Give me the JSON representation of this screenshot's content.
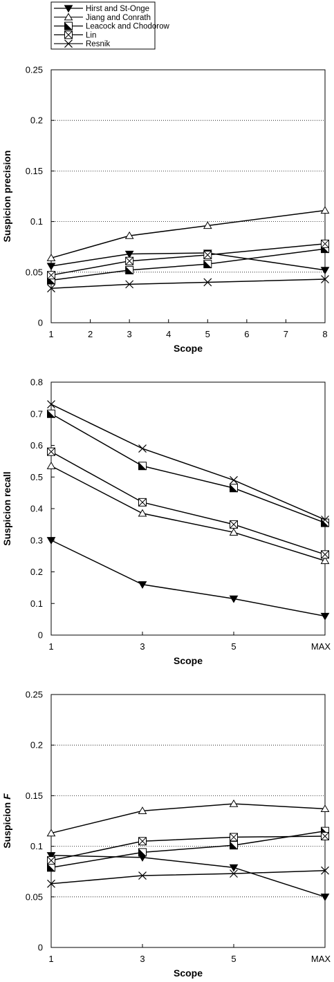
{
  "legend": {
    "entries": [
      "Hirst and St-Onge",
      "Jiang and Conrath",
      "Leacock and Chodorow",
      "Lin",
      "Resnik"
    ]
  },
  "chart_data": [
    {
      "type": "line",
      "xlabel": "Scope",
      "ylabel": "Suspicion precision",
      "x_ticks": [
        "1",
        "2",
        "3",
        "4",
        "5",
        "6",
        "7",
        "8"
      ],
      "x": [
        1,
        3,
        5,
        8
      ],
      "xlim": [
        1,
        8
      ],
      "ylim": [
        0,
        0.25
      ],
      "y_ticks": [
        "0",
        "0.05",
        "0.1",
        "0.15",
        "0.2",
        "0.25"
      ],
      "y_tick_values": [
        0,
        0.05,
        0.1,
        0.15,
        0.2,
        0.25
      ],
      "grid": "horizontal dotted",
      "series": [
        {
          "name": "Hirst and St-Onge",
          "marker": "filled-down-triangle",
          "values": [
            0.056,
            0.068,
            0.069,
            0.052
          ]
        },
        {
          "name": "Jiang and Conrath",
          "marker": "open-up-triangle",
          "values": [
            0.064,
            0.086,
            0.096,
            0.111
          ]
        },
        {
          "name": "Leacock and Chodorow",
          "marker": "half-filled-square",
          "values": [
            0.042,
            0.052,
            0.058,
            0.073
          ]
        },
        {
          "name": "Lin",
          "marker": "crossed-square",
          "values": [
            0.047,
            0.061,
            0.067,
            0.078
          ]
        },
        {
          "name": "Resnik",
          "marker": "x",
          "values": [
            0.034,
            0.038,
            0.04,
            0.043
          ]
        }
      ]
    },
    {
      "type": "line",
      "xlabel": "Scope",
      "ylabel": "Suspicion recall",
      "x_ticks": [
        "1",
        "3",
        "5",
        "MAX"
      ],
      "x": [
        1,
        3,
        5,
        7
      ],
      "xlim": [
        1,
        7
      ],
      "ylim": [
        0,
        0.8
      ],
      "y_ticks": [
        "0",
        "0.1",
        "0.2",
        "0.3",
        "0.4",
        "0.5",
        "0.6",
        "0.7",
        "0.8"
      ],
      "y_tick_values": [
        0,
        0.1,
        0.2,
        0.3,
        0.4,
        0.5,
        0.6,
        0.7,
        0.8
      ],
      "grid": "none",
      "series": [
        {
          "name": "Hirst and St-Onge",
          "marker": "filled-down-triangle",
          "values": [
            0.3,
            0.16,
            0.115,
            0.06
          ]
        },
        {
          "name": "Jiang and Conrath",
          "marker": "open-up-triangle",
          "values": [
            0.535,
            0.385,
            0.325,
            0.235
          ]
        },
        {
          "name": "Leacock and Chodorow",
          "marker": "half-filled-square",
          "values": [
            0.7,
            0.535,
            0.465,
            0.355
          ]
        },
        {
          "name": "Lin",
          "marker": "crossed-square",
          "values": [
            0.58,
            0.42,
            0.35,
            0.255
          ]
        },
        {
          "name": "Resnik",
          "marker": "x",
          "values": [
            0.73,
            0.59,
            0.49,
            0.365
          ]
        }
      ]
    },
    {
      "type": "line",
      "xlabel": "Scope",
      "ylabel_prefix": "Suspicion ",
      "ylabel_italic": "F",
      "x_ticks": [
        "1",
        "3",
        "5",
        "MAX"
      ],
      "x": [
        1,
        3,
        5,
        7
      ],
      "xlim": [
        1,
        7
      ],
      "ylim": [
        0,
        0.25
      ],
      "y_ticks": [
        "0",
        "0.05",
        "0.1",
        "0.15",
        "0.2",
        "0.25"
      ],
      "y_tick_values": [
        0,
        0.05,
        0.1,
        0.15,
        0.2,
        0.25
      ],
      "grid": "horizontal dotted",
      "series": [
        {
          "name": "Hirst and St-Onge",
          "marker": "filled-down-triangle",
          "values": [
            0.091,
            0.089,
            0.079,
            0.05
          ]
        },
        {
          "name": "Jiang and Conrath",
          "marker": "open-up-triangle",
          "values": [
            0.113,
            0.135,
            0.142,
            0.137
          ]
        },
        {
          "name": "Leacock and Chodorow",
          "marker": "half-filled-square",
          "values": [
            0.079,
            0.094,
            0.101,
            0.115
          ]
        },
        {
          "name": "Lin",
          "marker": "crossed-square",
          "values": [
            0.086,
            0.105,
            0.109,
            0.11
          ]
        },
        {
          "name": "Resnik",
          "marker": "x",
          "values": [
            0.063,
            0.071,
            0.073,
            0.076
          ]
        }
      ]
    }
  ]
}
